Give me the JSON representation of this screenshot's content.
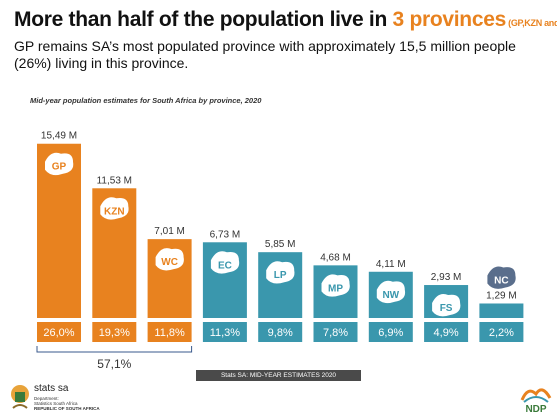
{
  "header": {
    "title_prefix": "More than half of the population live in ",
    "title_accent": "3 provinces",
    "title_suffix": " (GP,KZN and WC)",
    "subtitle": "GP remains SA’s most populated province with approximately 15,5 million people (26%) living in this province."
  },
  "chart_data": {
    "type": "bar",
    "title": "Mid-year population estimates for South Africa by province, 2020",
    "unit": "M",
    "categories": [
      "GP",
      "KZN",
      "WC",
      "EC",
      "LP",
      "MP",
      "NW",
      "FS",
      "NC"
    ],
    "values": [
      15.49,
      11.53,
      7.01,
      6.73,
      5.85,
      4.68,
      4.11,
      2.93,
      1.29
    ],
    "value_labels": [
      "15,49 M",
      "11,53 M",
      "7,01 M",
      "6,73 M",
      "5,85 M",
      "4,68 M",
      "4,11 M",
      "2,93 M",
      "1,29 M"
    ],
    "percent_labels": [
      "26,0%",
      "19,3%",
      "11,8%",
      "11,3%",
      "9,8%",
      "7,8%",
      "6,9%",
      "4,9%",
      "2,2%"
    ],
    "group_total_label": "57,1%",
    "ylim": [
      0,
      16
    ],
    "colors": {
      "top3": "#e8821f",
      "others": "#3a97ad"
    }
  },
  "footer": {
    "source": "Stats SA: MID-YEAR ESTIMATES 2020",
    "org_name": "stats sa",
    "dept_line1": "Department:",
    "dept_line2": "Statistics South Africa",
    "dept_line3": "REPUBLIC OF SOUTH AFRICA",
    "ndp_logo_text": "NDP"
  }
}
